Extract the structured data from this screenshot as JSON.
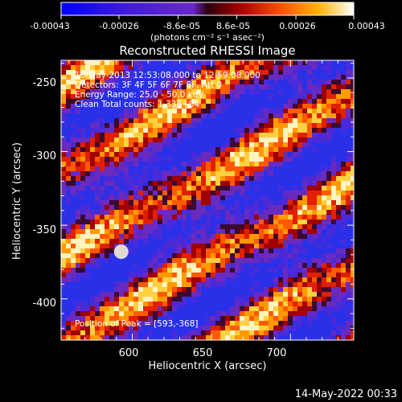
{
  "colorbar": {
    "tick_labels": [
      "-0.00043",
      "-0.00026",
      "-8.6e-05",
      "8.6e-05",
      "0.00026",
      "0.00043"
    ],
    "tick_values": [
      -0.00043,
      -0.00026,
      -8.6e-05,
      8.6e-05,
      0.00026,
      0.00043
    ],
    "range": [
      -0.00043,
      0.00043
    ],
    "unit_label": "(photons cm⁻² s⁻¹ asec⁻²)",
    "colors": [
      "#0000ff",
      "#6a28c8",
      "#b00000",
      "#ff5000",
      "#ffb400",
      "#ffffff"
    ]
  },
  "chart_data": {
    "type": "heatmap",
    "title": "Reconstructed RHESSI Image",
    "xlabel": "Heliocentric X (arcsec)",
    "ylabel": "Heliocentric Y (arcsec)",
    "xlim": [
      555,
      740
    ],
    "ylim": [
      -428,
      -238
    ],
    "xticks": [
      600,
      650,
      700
    ],
    "yticks": [
      -250,
      -300,
      -350,
      -400
    ],
    "peak": {
      "x": 593,
      "y": -368
    },
    "annotations": {
      "time_range": "16-May-2013 12:53:08.000 to 12:59:08.000",
      "detectors": "Detectors: 3F 4F 5F 6F 7F 8F, Att 0",
      "energy": "Energy Range: 25.0 - 50.0 keV",
      "clean": "Clean    Total counts: 1.33E+04",
      "peak_text": "Position of Peak = [593,-368]"
    }
  },
  "footer": {
    "timestamp": "14-May-2022 00:33"
  }
}
